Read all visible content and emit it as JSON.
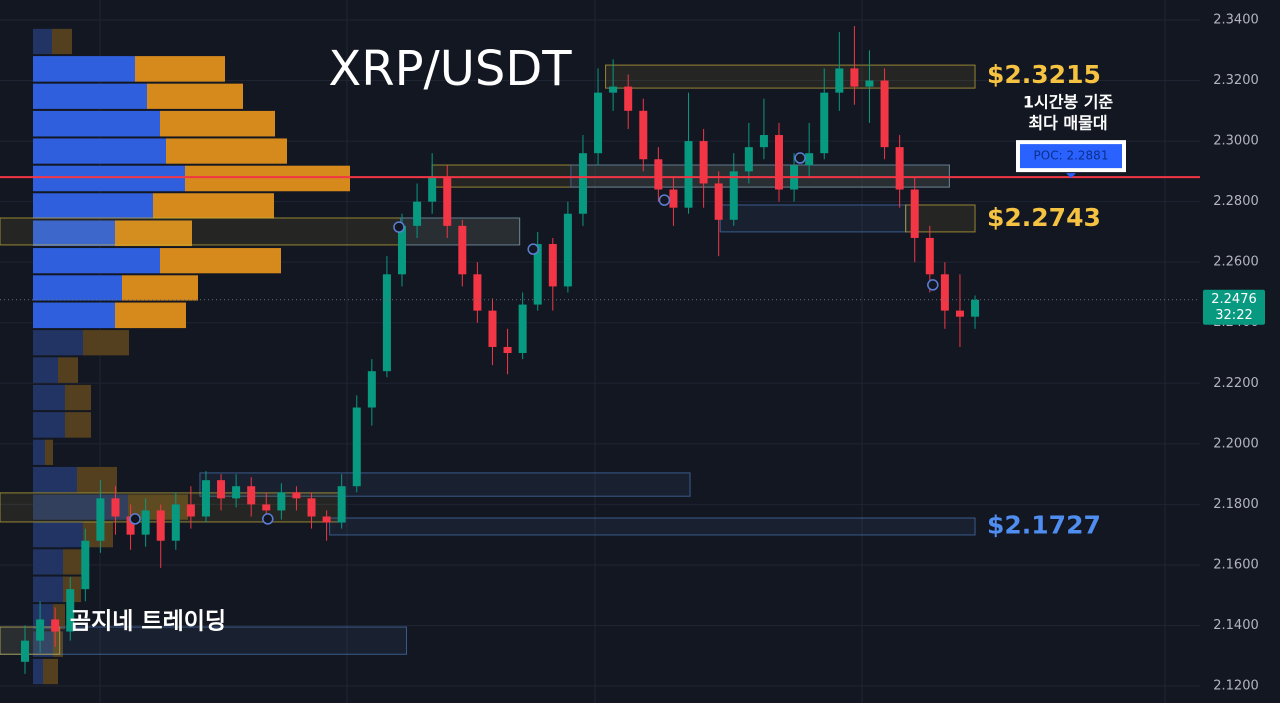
{
  "chart_data": {
    "type": "candlestick",
    "title": "XRP/USDT",
    "ylim": [
      2.1144,
      2.3466
    ],
    "yticks": [
      {
        "value": 2.12,
        "label": "2.1200"
      },
      {
        "value": 2.14,
        "label": "2.1400"
      },
      {
        "value": 2.16,
        "label": "2.1600"
      },
      {
        "value": 2.18,
        "label": "2.1800"
      },
      {
        "value": 2.2,
        "label": "2.2000"
      },
      {
        "value": 2.22,
        "label": "2.2200"
      },
      {
        "value": 2.24,
        "label": "2.2400"
      },
      {
        "value": 2.26,
        "label": "2.2600"
      },
      {
        "value": 2.28,
        "label": "2.2800"
      },
      {
        "value": 2.3,
        "label": "2.3000"
      },
      {
        "value": 2.32,
        "label": "2.3200"
      },
      {
        "value": 2.34,
        "label": "2.3400"
      }
    ],
    "grid": true,
    "colors": {
      "up": "#089981",
      "down": "#f23645"
    },
    "open": [
      2.128,
      2.135,
      2.142,
      2.138,
      2.152,
      2.168,
      2.182,
      2.176,
      2.17,
      2.178,
      2.168,
      2.18,
      2.176,
      2.188,
      2.182,
      2.186,
      2.18,
      2.178,
      2.184,
      2.182,
      2.176,
      2.174,
      2.186,
      2.212,
      2.224,
      2.256,
      2.272,
      2.28,
      2.288,
      2.272,
      2.256,
      2.244,
      2.232,
      2.23,
      2.246,
      2.266,
      2.252,
      2.276,
      2.296,
      2.316,
      2.318,
      2.31,
      2.294,
      2.284,
      2.278,
      2.3,
      2.286,
      2.274,
      2.29,
      2.298,
      2.302,
      2.284,
      2.292,
      2.296,
      2.316,
      2.324,
      2.318,
      2.32,
      2.298,
      2.284,
      2.268,
      2.256,
      2.244,
      2.242
    ],
    "high": [
      2.14,
      2.148,
      2.146,
      2.156,
      2.172,
      2.188,
      2.186,
      2.18,
      2.182,
      2.18,
      2.184,
      2.186,
      2.191,
      2.19,
      2.19,
      2.189,
      2.184,
      2.187,
      2.186,
      2.184,
      2.178,
      2.19,
      2.216,
      2.228,
      2.262,
      2.276,
      2.286,
      2.296,
      2.292,
      2.274,
      2.26,
      2.248,
      2.238,
      2.25,
      2.27,
      2.268,
      2.28,
      2.302,
      2.324,
      2.327,
      2.322,
      2.314,
      2.298,
      2.288,
      2.316,
      2.304,
      2.29,
      2.296,
      2.306,
      2.314,
      2.306,
      2.296,
      2.306,
      2.324,
      2.336,
      2.338,
      2.33,
      2.324,
      2.302,
      2.288,
      2.272,
      2.26,
      2.256,
      2.249
    ],
    "low": [
      2.124,
      2.131,
      2.133,
      2.135,
      2.148,
      2.164,
      2.17,
      2.165,
      2.166,
      2.159,
      2.165,
      2.172,
      2.174,
      2.178,
      2.179,
      2.176,
      2.174,
      2.175,
      2.178,
      2.172,
      2.168,
      2.172,
      2.184,
      2.206,
      2.222,
      2.252,
      2.268,
      2.276,
      2.268,
      2.252,
      2.24,
      2.226,
      2.223,
      2.228,
      2.244,
      2.244,
      2.25,
      2.272,
      2.292,
      2.31,
      2.304,
      2.29,
      2.28,
      2.272,
      2.276,
      2.278,
      2.262,
      2.272,
      2.286,
      2.294,
      2.28,
      2.28,
      2.288,
      2.294,
      2.31,
      2.312,
      2.306,
      2.294,
      2.278,
      2.26,
      2.25,
      2.238,
      2.232,
      2.238
    ],
    "close": [
      2.135,
      2.142,
      2.138,
      2.152,
      2.168,
      2.182,
      2.176,
      2.17,
      2.178,
      2.168,
      2.18,
      2.176,
      2.188,
      2.182,
      2.186,
      2.18,
      2.178,
      2.184,
      2.182,
      2.176,
      2.174,
      2.186,
      2.212,
      2.224,
      2.256,
      2.272,
      2.28,
      2.288,
      2.272,
      2.256,
      2.244,
      2.232,
      2.23,
      2.246,
      2.266,
      2.252,
      2.276,
      2.296,
      2.316,
      2.318,
      2.31,
      2.294,
      2.284,
      2.278,
      2.3,
      2.286,
      2.274,
      2.29,
      2.298,
      2.302,
      2.284,
      2.292,
      2.296,
      2.316,
      2.324,
      2.318,
      2.32,
      2.298,
      2.284,
      2.268,
      2.256,
      2.244,
      2.242,
      2.2476
    ],
    "volume_profile": {
      "bins": [
        2.1203,
        2.1293,
        2.1384,
        2.1474,
        2.1565,
        2.1655,
        2.1746,
        2.1836,
        2.1927,
        2.2017,
        2.2108,
        2.2198,
        2.2289,
        2.2379,
        2.247,
        2.256,
        2.265,
        2.2741,
        2.2831,
        2.2922,
        2.3012,
        2.3103,
        2.3193,
        2.3284,
        2.3374
      ],
      "buy": [
        10,
        20,
        20,
        30,
        30,
        50,
        95,
        44,
        12,
        32,
        32,
        25,
        50,
        82,
        89,
        127,
        82,
        120,
        152,
        133,
        127,
        114,
        102,
        19
      ],
      "sell": [
        15,
        10,
        12,
        18,
        22,
        30,
        60,
        40,
        8,
        26,
        26,
        20,
        46,
        71,
        76,
        121,
        77,
        121,
        165,
        121,
        115,
        96,
        90,
        20
      ],
      "value_area": [
        2.2379,
        2.3284
      ],
      "colors": {
        "buy": "#2f5fdc",
        "sell": "#d68a1c",
        "buy_outside": "#223463",
        "sell_outside": "#54401f"
      }
    },
    "zones": [
      {
        "from": 38.5,
        "to": 63,
        "low": 2.3175,
        "high": 2.3251,
        "color": "#c9b03a"
      },
      {
        "from": 27,
        "to": 61.3,
        "low": 2.2848,
        "high": 2.2921,
        "color": "#c9b03a"
      },
      {
        "from": 36.2,
        "to": 61.3,
        "low": 2.2848,
        "high": 2.2921,
        "color": "#4a78b5"
      },
      {
        "from": 46.1,
        "to": 58.4,
        "low": 2.27,
        "high": 2.2789,
        "color": "#4a78b5"
      },
      {
        "from": 58.4,
        "to": 63,
        "low": 2.27,
        "high": 2.2789,
        "color": "#c9b03a"
      },
      {
        "from": -1.7,
        "to": 32.8,
        "low": 2.2657,
        "high": 2.2746,
        "color": "#c9b03a"
      },
      {
        "from": 24.9,
        "to": 32.8,
        "low": 2.2657,
        "high": 2.2746,
        "color": "#4a78b5"
      },
      {
        "from": 11.6,
        "to": 44.1,
        "low": 2.1827,
        "high": 2.1904,
        "color": "#4a78b5"
      },
      {
        "from": -1.7,
        "to": 21.2,
        "low": 2.1742,
        "high": 2.1838,
        "color": "#c9b03a"
      },
      {
        "from": 20.2,
        "to": 63,
        "low": 2.1699,
        "high": 2.1755,
        "color": "#4a78b5"
      },
      {
        "from": -1.7,
        "to": 25.3,
        "low": 2.1305,
        "high": 2.1395,
        "color": "#4a78b5"
      },
      {
        "from": -1.7,
        "to": 2.3,
        "low": 2.1305,
        "high": 2.1395,
        "color": "#c9b03a"
      }
    ],
    "markers": [
      {
        "index": 7.3,
        "price": 2.1752
      },
      {
        "index": 16.1,
        "price": 2.1752
      },
      {
        "index": 24.8,
        "price": 2.2716
      },
      {
        "index": 33.7,
        "price": 2.2643
      },
      {
        "index": 42.4,
        "price": 2.2805
      },
      {
        "index": 51.4,
        "price": 2.2944
      },
      {
        "index": 60.2,
        "price": 2.2525
      }
    ],
    "level_labels": [
      {
        "value": 2.3215,
        "label": "$2.3215",
        "color": "#f5c242"
      },
      {
        "value": 2.2743,
        "label": "$2.2743",
        "color": "#f5c242"
      },
      {
        "value": 2.1727,
        "label": "$2.1727",
        "color": "#4f8ef0"
      }
    ],
    "poc": {
      "value": 2.2881,
      "label": "POC: 2.2881",
      "color": "#f23645"
    },
    "poc_note": [
      "1시간봉 기준",
      "최다 매물대"
    ],
    "current_price": {
      "value": 2.2476,
      "label": "2.2476",
      "countdown": "32:22"
    },
    "watermark": "곰지네 트레이딩"
  }
}
